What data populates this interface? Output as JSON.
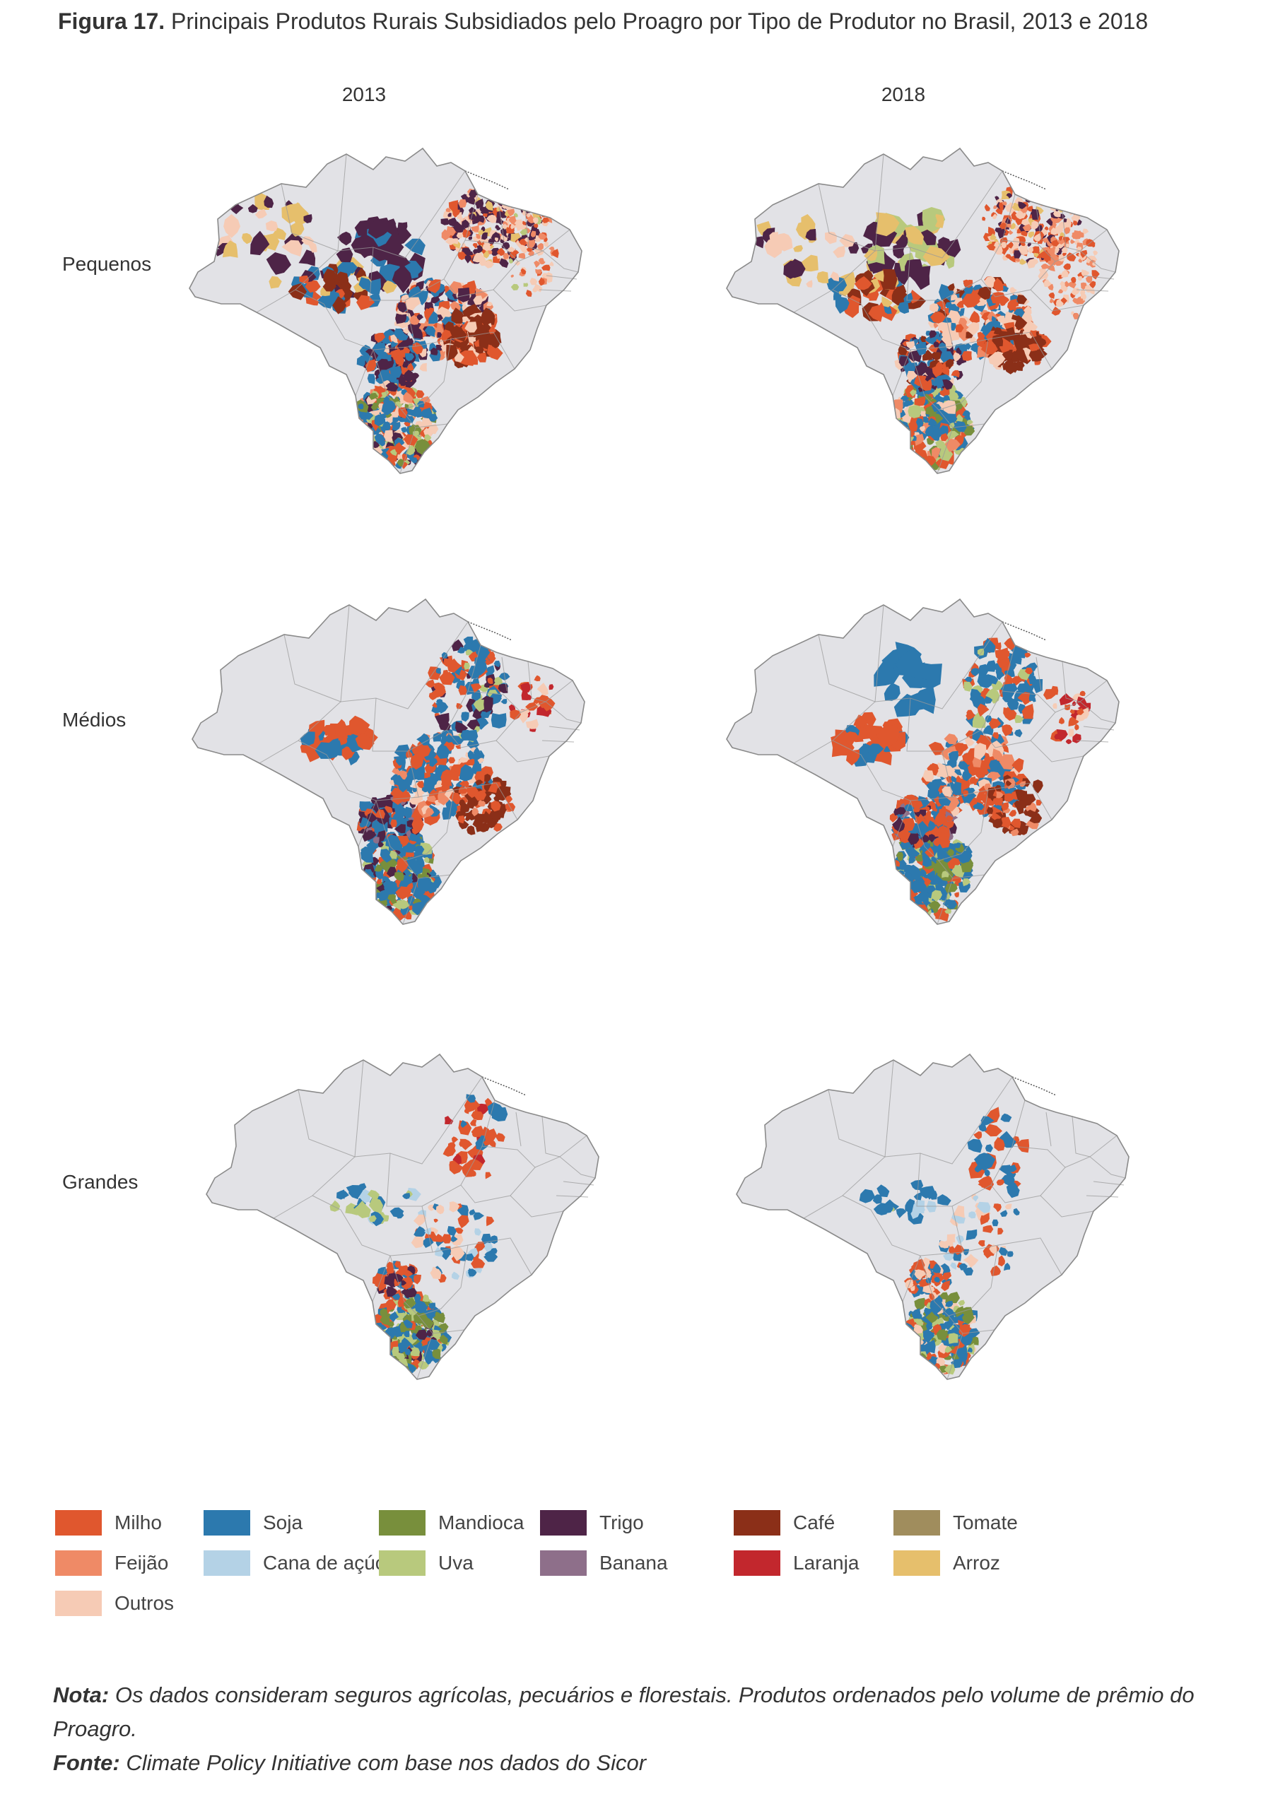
{
  "title": {
    "prefix": "Figura 17.",
    "text": "Principais Produtos Rurais Subsidiados pelo Proagro por Tipo de Produtor no Brasil, 2013 e 2018"
  },
  "columns": [
    "2013",
    "2018"
  ],
  "rows": [
    "Pequenos",
    "Médios",
    "Grandes"
  ],
  "legend": [
    {
      "label": "Milho",
      "color": "#e0572e"
    },
    {
      "label": "Soja",
      "color": "#2c79ae"
    },
    {
      "label": "Mandioca",
      "color": "#788f3c"
    },
    {
      "label": "Trigo",
      "color": "#4e2447"
    },
    {
      "label": "Café",
      "color": "#8b2f18"
    },
    {
      "label": "Tomate",
      "color": "#a08d5d"
    },
    {
      "label": "Feijão",
      "color": "#ef8a66"
    },
    {
      "label": "Cana de açúcar",
      "color": "#b4d2e6"
    },
    {
      "label": "Uva",
      "color": "#b8c97d"
    },
    {
      "label": "Banana",
      "color": "#8e6f8a"
    },
    {
      "label": "Laranja",
      "color": "#c2272d"
    },
    {
      "label": "Arroz",
      "color": "#e6bf6c"
    },
    {
      "label": "Outros",
      "color": "#f6cbb5"
    }
  ],
  "colors": {
    "map_base": "#e2e2e6",
    "map_border": "#9a9a9a"
  },
  "nota": {
    "label": "Nota:",
    "text": "Os dados consideram seguros agrícolas, pecuários e florestais. Produtos ordenados pelo volume de prêmio do Proagro."
  },
  "fonte": {
    "label": "Fonte:",
    "text": "Climate Policy Initiative com base nos dados do Sicor"
  }
}
